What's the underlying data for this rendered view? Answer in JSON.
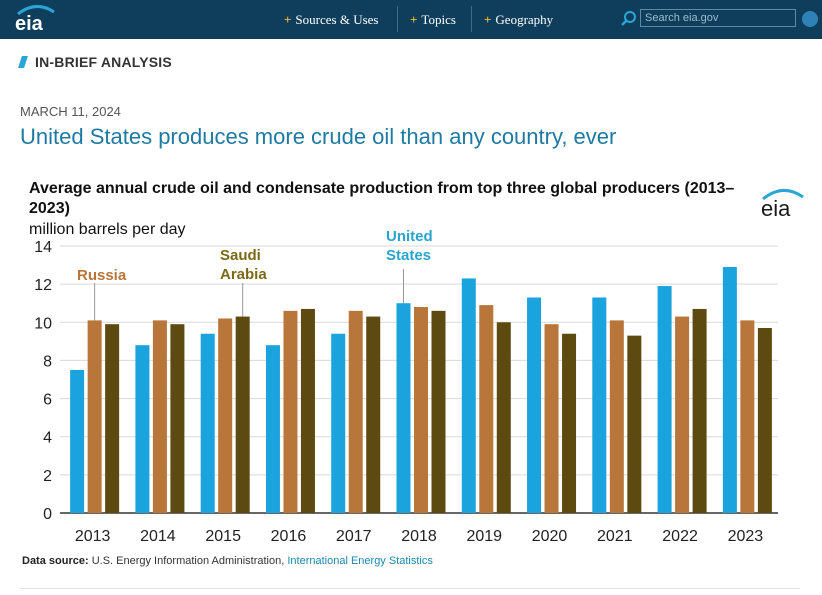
{
  "header": {
    "logo_text": "eia",
    "nav": [
      "Sources & Uses",
      "Topics",
      "Geography"
    ],
    "search_placeholder": "Search eia.gov"
  },
  "article": {
    "section": "IN-BRIEF ANALYSIS",
    "date": "MARCH 11, 2024",
    "headline": "United States produces more crude oil than any country, ever"
  },
  "chart_data": {
    "type": "bar",
    "title": "Average annual crude oil and condensate production from top three global producers (2013–2023)",
    "ylabel": "million barrels per day",
    "xlabel": "",
    "ylim": [
      0,
      14
    ],
    "yticks": [
      "0",
      "2",
      "4",
      "6",
      "8",
      "10",
      "12",
      "14"
    ],
    "grid": true,
    "categories": [
      "2013",
      "2014",
      "2015",
      "2016",
      "2017",
      "2018",
      "2019",
      "2020",
      "2021",
      "2022",
      "2023"
    ],
    "series": [
      {
        "name": "United States",
        "label": "United\nStates",
        "color": "#1aa3dd",
        "values": [
          7.5,
          8.8,
          9.4,
          8.8,
          9.4,
          11.0,
          12.3,
          11.3,
          11.3,
          11.9,
          12.9
        ]
      },
      {
        "name": "Russia",
        "label": "Russia",
        "color": "#b8763a",
        "values": [
          10.1,
          10.1,
          10.2,
          10.6,
          10.6,
          10.8,
          10.9,
          9.9,
          10.1,
          10.3,
          10.1
        ]
      },
      {
        "name": "Saudi Arabia",
        "label": "Saudi\nArabia",
        "color": "#5c4a10",
        "values": [
          9.9,
          9.9,
          10.3,
          10.7,
          10.3,
          10.6,
          10.0,
          9.4,
          9.3,
          10.7,
          9.7
        ]
      }
    ],
    "legend_placement": "inline labels above bars",
    "label_colors": {
      "United States": "#2aa3d1",
      "Russia": "#b8763a",
      "Saudi Arabia": "#7a6a18"
    }
  },
  "source": {
    "label": "Data source:",
    "text": "U.S. Energy Information Administration,",
    "link": "International Energy Statistics"
  },
  "chart_logo_text": "eia"
}
